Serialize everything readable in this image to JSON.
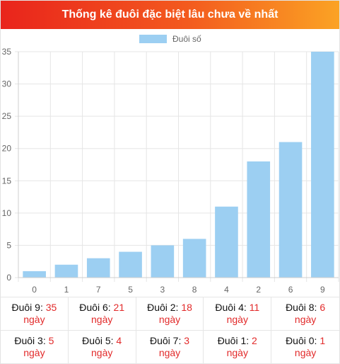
{
  "header": {
    "title": "Thống kê đuôi đặc biệt lâu chưa về nhất"
  },
  "chart_data": {
    "type": "bar",
    "title": "",
    "xlabel": "",
    "ylabel": "",
    "categories": [
      "0",
      "1",
      "7",
      "5",
      "3",
      "8",
      "4",
      "2",
      "6",
      "9"
    ],
    "series": [
      {
        "name": "Đuôi số",
        "values": [
          1,
          2,
          3,
          4,
          5,
          6,
          11,
          18,
          21,
          35
        ]
      }
    ],
    "ylim": [
      0,
      35
    ],
    "yticks": [
      0,
      5,
      10,
      15,
      20,
      25,
      30,
      35
    ],
    "grid": true,
    "legend": "top-center",
    "bar_color": "#9ccff2",
    "grid_color": "#e5e5e5"
  },
  "stats": {
    "unit": "ngày",
    "items": [
      {
        "label": "Đuôi 9: ",
        "value": "35"
      },
      {
        "label": "Đuôi 6: ",
        "value": "21"
      },
      {
        "label": "Đuôi 2: ",
        "value": "18"
      },
      {
        "label": "Đuôi 4: ",
        "value": "11"
      },
      {
        "label": "Đuôi 8: ",
        "value": "6"
      },
      {
        "label": "Đuôi 3: ",
        "value": "5"
      },
      {
        "label": "Đuôi 5: ",
        "value": "4"
      },
      {
        "label": "Đuôi 7: ",
        "value": "3"
      },
      {
        "label": "Đuôi 1: ",
        "value": "2"
      },
      {
        "label": "Đuôi 0: ",
        "value": "1"
      }
    ]
  }
}
